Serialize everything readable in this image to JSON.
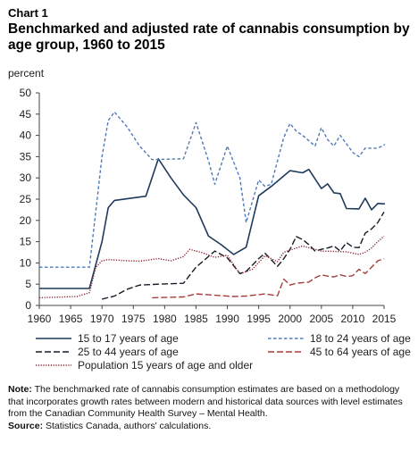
{
  "header": {
    "chart_number": "Chart 1",
    "title": "Benchmarked and adjusted rate of cannabis consumption by age group, 1960 to 2015",
    "unit": "percent"
  },
  "footer": {
    "note_label": "Note:",
    "note_text": "The benchmarked rate of cannabis consumption estimates are based on a methodology that incorporates growth rates between modern and historical data sources with level estimates from the Canadian Community Health Survey – Mental Health.",
    "source_label": "Source:",
    "source_text": "Statistics Canada, authors' calculations."
  },
  "chart_data": {
    "type": "line",
    "xlim": [
      1960,
      2015
    ],
    "ylim": [
      0,
      50
    ],
    "x_ticks": [
      1960,
      1965,
      1970,
      1975,
      1980,
      1985,
      1990,
      1995,
      2000,
      2005,
      2010,
      2015
    ],
    "y_ticks": [
      0,
      5,
      10,
      15,
      20,
      25,
      30,
      35,
      40,
      45,
      50
    ],
    "grid": false,
    "legend_position": "bottom",
    "series": [
      {
        "name": "15 to 17 years of age",
        "color": "#1f3a5c",
        "style": "solid",
        "points": [
          [
            1960,
            4
          ],
          [
            1968,
            4
          ],
          [
            1970,
            15
          ],
          [
            1971,
            23
          ],
          [
            1972,
            24.7
          ],
          [
            1977,
            25.7
          ],
          [
            1979,
            34.5
          ],
          [
            1981,
            30
          ],
          [
            1983,
            26
          ],
          [
            1985,
            23
          ],
          [
            1987,
            16.3
          ],
          [
            1989,
            14.3
          ],
          [
            1991,
            12
          ],
          [
            1993,
            13.7
          ],
          [
            1995,
            25.8
          ],
          [
            1997,
            28
          ],
          [
            2000,
            31.7
          ],
          [
            2002,
            31.2
          ],
          [
            2003,
            32
          ],
          [
            2005,
            27.5
          ],
          [
            2006,
            28.6
          ],
          [
            2007,
            26.5
          ],
          [
            2008,
            26.3
          ],
          [
            2009,
            22.8
          ],
          [
            2011,
            22.7
          ],
          [
            2012,
            25.2
          ],
          [
            2013,
            22.5
          ],
          [
            2014,
            24
          ],
          [
            2016,
            23.8
          ]
        ]
      },
      {
        "name": "18 to 24 years of age",
        "color": "#4f7ab8",
        "style": "dashed",
        "points": [
          [
            1960,
            9
          ],
          [
            1968,
            9
          ],
          [
            1970,
            35
          ],
          [
            1971,
            43.5
          ],
          [
            1972,
            45.5
          ],
          [
            1974,
            42
          ],
          [
            1976,
            37.5
          ],
          [
            1978,
            34.3
          ],
          [
            1980,
            34.4
          ],
          [
            1983,
            34.5
          ],
          [
            1985,
            43
          ],
          [
            1987,
            34
          ],
          [
            1988,
            28.5
          ],
          [
            1990,
            37.5
          ],
          [
            1992,
            30
          ],
          [
            1993,
            19.5
          ],
          [
            1995,
            29.5
          ],
          [
            1996,
            28
          ],
          [
            1997,
            28.5
          ],
          [
            1999,
            39.5
          ],
          [
            2000,
            42.8
          ],
          [
            2001,
            41
          ],
          [
            2002,
            40
          ],
          [
            2004,
            37.5
          ],
          [
            2005,
            41.8
          ],
          [
            2006,
            39
          ],
          [
            2007,
            37.5
          ],
          [
            2008,
            40
          ],
          [
            2010,
            36
          ],
          [
            2011,
            35
          ],
          [
            2012,
            37
          ],
          [
            2014,
            37
          ],
          [
            2016,
            38.5
          ]
        ]
      },
      {
        "name": "25 to 44 years of age",
        "color": "#141c26",
        "style": "longdash",
        "points": [
          [
            1970,
            1.5
          ],
          [
            1972,
            2.2
          ],
          [
            1974,
            3.8
          ],
          [
            1976,
            4.8
          ],
          [
            1979,
            5
          ],
          [
            1983,
            5.2
          ],
          [
            1985,
            9
          ],
          [
            1988,
            12.8
          ],
          [
            1990,
            11.2
          ],
          [
            1992,
            7.5
          ],
          [
            1993,
            8
          ],
          [
            1995,
            11
          ],
          [
            1996,
            12.3
          ],
          [
            1998,
            9.2
          ],
          [
            1999,
            11
          ],
          [
            2000,
            13.2
          ],
          [
            2001,
            16.2
          ],
          [
            2002,
            15.5
          ],
          [
            2003,
            14.3
          ],
          [
            2004,
            12.8
          ],
          [
            2005,
            13.2
          ],
          [
            2006,
            13.5
          ],
          [
            2007,
            14
          ],
          [
            2008,
            12.8
          ],
          [
            2009,
            14.8
          ],
          [
            2010,
            13.7
          ],
          [
            2011,
            13.6
          ],
          [
            2012,
            17
          ],
          [
            2013,
            18
          ],
          [
            2014,
            19.5
          ],
          [
            2015,
            22
          ]
        ]
      },
      {
        "name": "45 to 64 years of age",
        "color": "#a33d3d",
        "style": "longdash",
        "points": [
          [
            1978,
            1.8
          ],
          [
            1983,
            2
          ],
          [
            1985,
            2.7
          ],
          [
            1988,
            2.4
          ],
          [
            1991,
            2.1
          ],
          [
            1993,
            2.2
          ],
          [
            1996,
            2.7
          ],
          [
            1998,
            2.3
          ],
          [
            1999,
            6.2
          ],
          [
            2000,
            4.8
          ],
          [
            2001,
            5.2
          ],
          [
            2003,
            5.5
          ],
          [
            2004,
            6.5
          ],
          [
            2005,
            7.2
          ],
          [
            2006,
            6.9
          ],
          [
            2007,
            6.7
          ],
          [
            2008,
            7.2
          ],
          [
            2009,
            6.8
          ],
          [
            2010,
            7
          ],
          [
            2011,
            8.5
          ],
          [
            2012,
            7.5
          ],
          [
            2013,
            9
          ],
          [
            2014,
            10.5
          ],
          [
            2015,
            11
          ]
        ]
      },
      {
        "name": "Population 15 years of age and older",
        "color": "#8a1f2d",
        "style": "dotted",
        "points": [
          [
            1960,
            1.8
          ],
          [
            1966,
            2.1
          ],
          [
            1968,
            3
          ],
          [
            1969,
            9
          ],
          [
            1970,
            10.5
          ],
          [
            1971,
            10.8
          ],
          [
            1974,
            10.5
          ],
          [
            1976,
            10.4
          ],
          [
            1979,
            11
          ],
          [
            1981,
            10.5
          ],
          [
            1983,
            11.5
          ],
          [
            1984,
            13.2
          ],
          [
            1986,
            12.4
          ],
          [
            1988,
            11.3
          ],
          [
            1990,
            11.8
          ],
          [
            1992,
            7.4
          ],
          [
            1994,
            8.5
          ],
          [
            1996,
            11.7
          ],
          [
            1998,
            10.3
          ],
          [
            1999,
            12.5
          ],
          [
            2000,
            13
          ],
          [
            2002,
            14
          ],
          [
            2003,
            13.6
          ],
          [
            2005,
            12.8
          ],
          [
            2007,
            12.7
          ],
          [
            2009,
            12.6
          ],
          [
            2011,
            12
          ],
          [
            2012,
            12.5
          ],
          [
            2013,
            13.5
          ],
          [
            2014,
            15
          ],
          [
            2015,
            16.3
          ]
        ]
      }
    ]
  }
}
